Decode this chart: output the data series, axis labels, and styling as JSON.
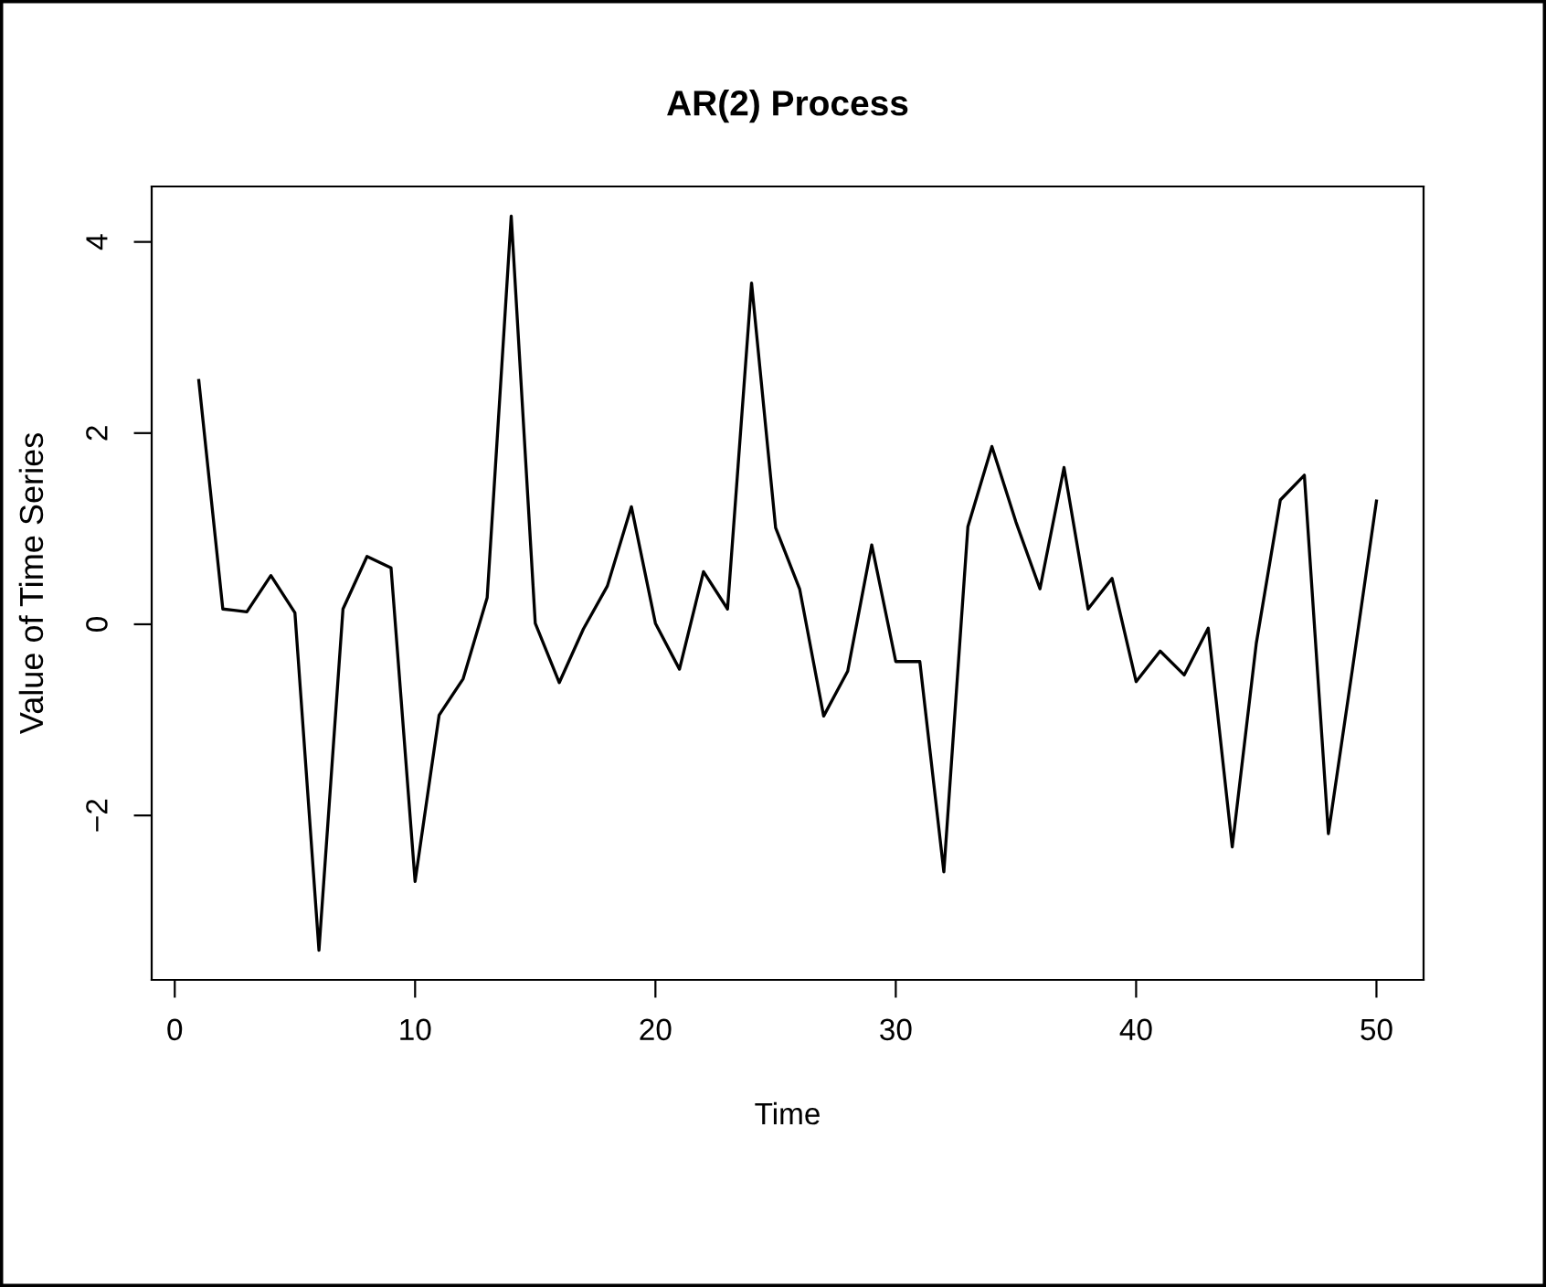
{
  "chart_data": {
    "type": "line",
    "title": "AR(2) Process",
    "xlabel": "Time",
    "ylabel": "Value of Time Series",
    "x": [
      1,
      2,
      3,
      4,
      5,
      6,
      7,
      8,
      9,
      10,
      11,
      12,
      13,
      14,
      15,
      16,
      17,
      18,
      19,
      20,
      21,
      22,
      23,
      24,
      25,
      26,
      27,
      28,
      29,
      30,
      31,
      32,
      33,
      34,
      35,
      36,
      37,
      38,
      39,
      40,
      41,
      42,
      43,
      44,
      45,
      46,
      47,
      48,
      49,
      50
    ],
    "series": [
      {
        "color": "#000000",
        "values": [
          2.55,
          0.16,
          0.13,
          0.51,
          0.12,
          -3.41,
          0.16,
          0.71,
          0.59,
          -2.69,
          -0.95,
          -0.57,
          0.28,
          4.27,
          0.01,
          -0.61,
          -0.05,
          0.4,
          1.23,
          0.01,
          -0.47,
          0.55,
          0.16,
          3.57,
          1.01,
          0.37,
          -0.96,
          -0.49,
          0.83,
          -0.39,
          -0.39,
          -2.59,
          1.02,
          1.86,
          1.07,
          0.37,
          1.64,
          0.16,
          0.48,
          -0.6,
          -0.28,
          -0.53,
          -0.04,
          -2.33,
          -0.2,
          1.3,
          1.56,
          -2.19,
          -0.47,
          1.29
        ]
      }
    ],
    "xlim": [
      -0.96,
      51.96
    ],
    "ylim": [
      -3.72,
      4.58
    ],
    "xticks": [
      0,
      10,
      20,
      30,
      40,
      50
    ],
    "yticks": [
      {
        "value": -2,
        "label": "−2"
      },
      0,
      2,
      4
    ],
    "grid": false,
    "legend": false,
    "marker": "none",
    "line_style": "solid"
  }
}
